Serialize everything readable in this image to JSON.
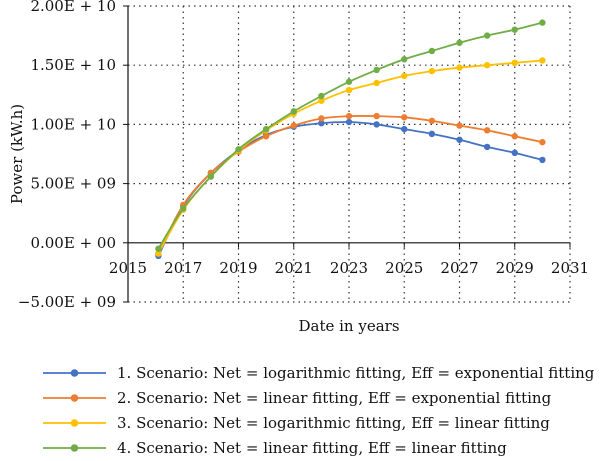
{
  "chart_data": {
    "type": "line",
    "title": "",
    "xlabel": "Date in years",
    "ylabel": "Power  (kW.h)",
    "xlim": [
      2015,
      2031
    ],
    "ylim": [
      -5000000000.0,
      20000000000.0
    ],
    "x_ticks": [
      2015,
      2017,
      2019,
      2021,
      2023,
      2025,
      2027,
      2029,
      2031
    ],
    "x_tick_labels": [
      "2015",
      "2017",
      "2019",
      "2021",
      "2023",
      "2025",
      "2027",
      "2029",
      "2031"
    ],
    "y_ticks": [
      -5000000000.0,
      0,
      5000000000.0,
      10000000000.0,
      15000000000.0,
      20000000000.0
    ],
    "y_tick_labels": [
      "−5.00E + 09",
      "0.00E + 00",
      "5.00E + 09",
      "1.00E + 10",
      "1.50E + 10",
      "2.00E + 10"
    ],
    "grid": "dotted-major",
    "legend": "bottom",
    "x": [
      2016.1,
      2017,
      2018,
      2019,
      2020,
      2021,
      2022,
      2023,
      2024,
      2025,
      2026,
      2027,
      2028,
      2029,
      2030
    ],
    "series": [
      {
        "name": "1. Scenario: Net = logarithmic fitting, Eff = exponential fitting",
        "color": "#4472c4",
        "values": [
          -1100000000.0,
          3100000000.0,
          5900000000.0,
          7800000000.0,
          9100000000.0,
          9800000000.0,
          10100000000.0,
          10200000000.0,
          10000000000.0,
          9600000000.0,
          9200000000.0,
          8700000000.0,
          8100000000.0,
          7600000000.0,
          7000000000.0
        ]
      },
      {
        "name": "2. Scenario: Net = linear fitting, Eff = exponential fitting",
        "color": "#ed7d31",
        "values": [
          -900000000.0,
          3200000000.0,
          5900000000.0,
          7700000000.0,
          9000000000.0,
          9900000000.0,
          10500000000.0,
          10700000000.0,
          10700000000.0,
          10600000000.0,
          10300000000.0,
          9900000000.0,
          9500000000.0,
          9000000000.0,
          8500000000.0
        ]
      },
      {
        "name": "3. Scenario: Net = logarithmic fitting, Eff = linear fitting",
        "color": "#ffc000",
        "values": [
          -900000000.0,
          2800000000.0,
          5600000000.0,
          7800000000.0,
          9500000000.0,
          10900000000.0,
          12000000000.0,
          12900000000.0,
          13500000000.0,
          14100000000.0,
          14500000000.0,
          14800000000.0,
          15000000000.0,
          15200000000.0,
          15400000000.0
        ]
      },
      {
        "name": "4. Scenario: Net = linear fitting, Eff = linear fitting",
        "color": "#70ad47",
        "values": [
          -500000000.0,
          2900000000.0,
          5600000000.0,
          7900000000.0,
          9600000000.0,
          11100000000.0,
          12400000000.0,
          13600000000.0,
          14600000000.0,
          15500000000.0,
          16200000000.0,
          16900000000.0,
          17500000000.0,
          18000000000.0,
          18600000000.0
        ]
      }
    ]
  }
}
